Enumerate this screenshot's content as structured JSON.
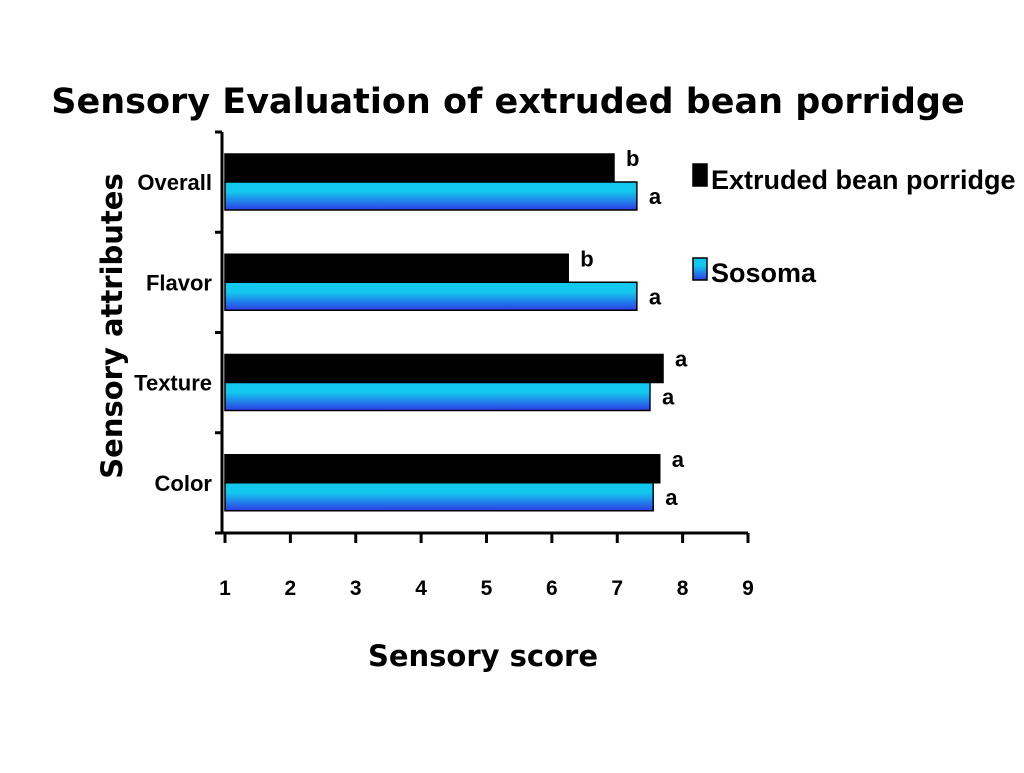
{
  "chart_data": {
    "type": "bar",
    "orientation": "horizontal",
    "title": "Sensory Evaluation of extruded bean porridge",
    "xlabel": "Sensory score",
    "ylabel": "Sensory attributes",
    "xlim": [
      1,
      9
    ],
    "x_ticks": [
      "1",
      "2",
      "3",
      "4",
      "5",
      "6",
      "7",
      "8",
      "9"
    ],
    "categories": [
      "Overall",
      "Flavor",
      "Texture",
      "Color"
    ],
    "series": [
      {
        "name": "Extruded bean porridge",
        "color": "#000000",
        "values": [
          6.95,
          6.25,
          7.7,
          7.65
        ],
        "labels": [
          "b",
          "b",
          "a",
          "a"
        ]
      },
      {
        "name": "Sosoma",
        "color": "#12c8ee",
        "color_dark": "#2d3ee6",
        "values": [
          7.3,
          7.3,
          7.5,
          7.55
        ],
        "labels": [
          "a",
          "a",
          "a",
          "a"
        ]
      }
    ],
    "grid": false,
    "legend_position": "top-right"
  }
}
